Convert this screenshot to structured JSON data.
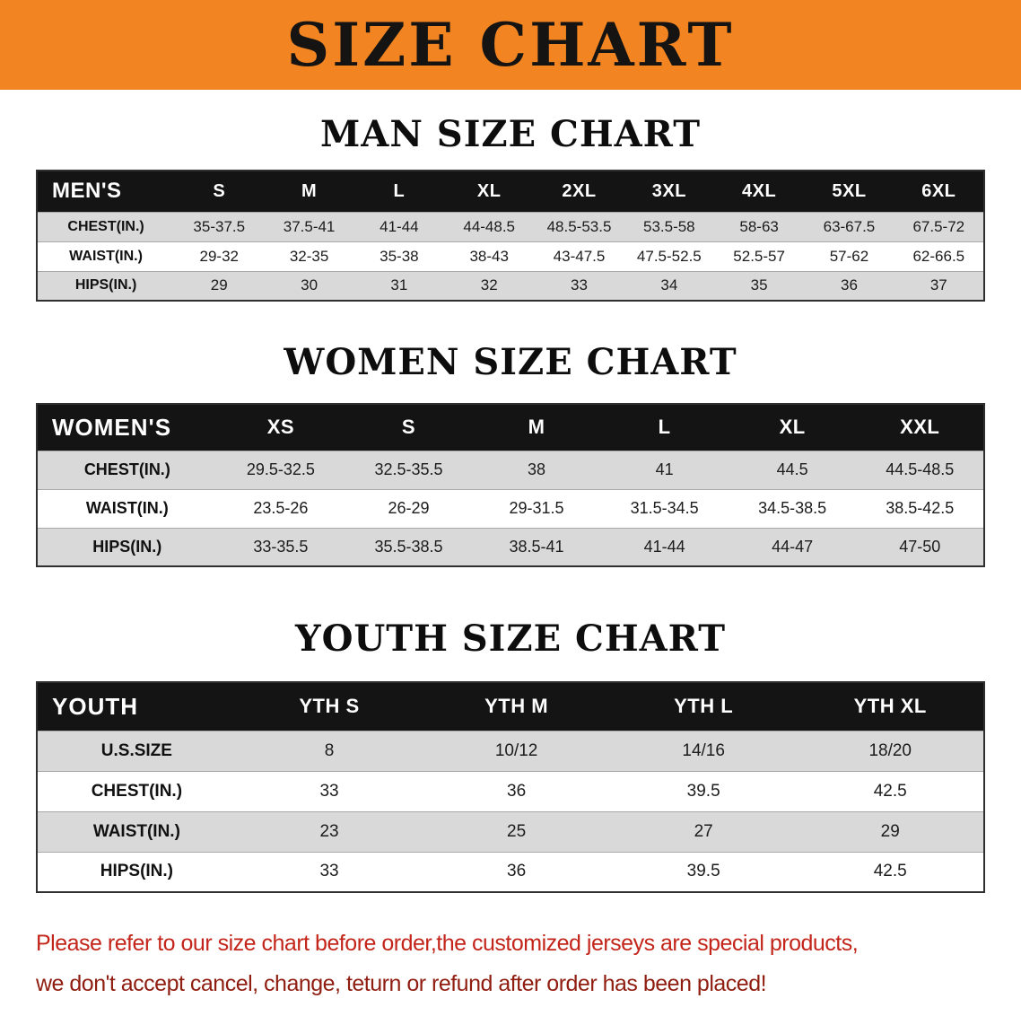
{
  "banner": {
    "title": "SIZE CHART"
  },
  "colors": {
    "banner_bg": "#f28522",
    "banner_text": "#161412",
    "heading_text": "#0d0d0d",
    "table_header_bg": "#141414",
    "table_header_text": "#ffffff",
    "row_stripe": "#d9d9d9",
    "footer_line1": "#c3251a",
    "footer_line2": "#8f1d10"
  },
  "sections": [
    {
      "heading": "MAN SIZE CHART",
      "table": {
        "header": [
          "MEN'S",
          "S",
          "M",
          "L",
          "XL",
          "2XL",
          "3XL",
          "4XL",
          "5XL",
          "6XL"
        ],
        "rows": [
          [
            "CHEST(IN.)",
            "35-37.5",
            "37.5-41",
            "41-44",
            "44-48.5",
            "48.5-53.5",
            "53.5-58",
            "58-63",
            "63-67.5",
            "67.5-72"
          ],
          [
            "WAIST(IN.)",
            "29-32",
            "32-35",
            "35-38",
            "38-43",
            "43-47.5",
            "47.5-52.5",
            "52.5-57",
            "57-62",
            "62-66.5"
          ],
          [
            "HIPS(IN.)",
            "29",
            "30",
            "31",
            "32",
            "33",
            "34",
            "35",
            "36",
            "37"
          ]
        ]
      }
    },
    {
      "heading": "WOMEN SIZE CHART",
      "table": {
        "header": [
          "WOMEN'S",
          "XS",
          "S",
          "M",
          "L",
          "XL",
          "XXL"
        ],
        "rows": [
          [
            "CHEST(IN.)",
            "29.5-32.5",
            "32.5-35.5",
            "38",
            "41",
            "44.5",
            "44.5-48.5"
          ],
          [
            "WAIST(IN.)",
            "23.5-26",
            "26-29",
            "29-31.5",
            "31.5-34.5",
            "34.5-38.5",
            "38.5-42.5"
          ],
          [
            "HIPS(IN.)",
            "33-35.5",
            "35.5-38.5",
            "38.5-41",
            "41-44",
            "44-47",
            "47-50"
          ]
        ]
      }
    },
    {
      "heading": "YOUTH SIZE CHART",
      "table": {
        "header": [
          "YOUTH",
          "YTH S",
          "YTH M",
          "YTH L",
          "YTH XL"
        ],
        "rows": [
          [
            "U.S.SIZE",
            "8",
            "10/12",
            "14/16",
            "18/20"
          ],
          [
            "CHEST(IN.)",
            "33",
            "36",
            "39.5",
            "42.5"
          ],
          [
            "WAIST(IN.)",
            "23",
            "25",
            "27",
            "29"
          ],
          [
            "HIPS(IN.)",
            "33",
            "36",
            "39.5",
            "42.5"
          ]
        ]
      }
    }
  ],
  "footer": {
    "line1": "Please refer to our size chart before order,the customized jerseys are special products,",
    "line2": "we don't accept cancel, change, teturn or refund after order has been placed!"
  }
}
